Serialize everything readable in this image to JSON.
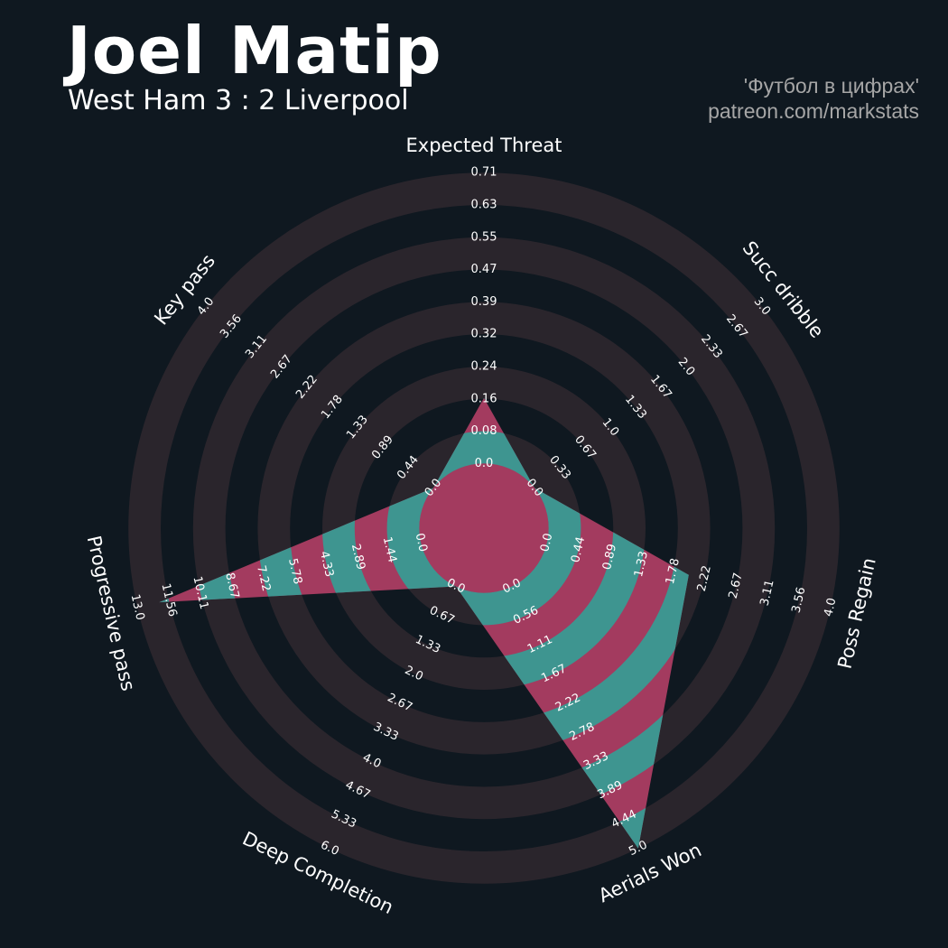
{
  "header": {
    "title": "Joel Matip",
    "subtitle": "West Ham 3 : 2 Liverpool",
    "credit_line1": "'Футбол в цифрах'",
    "credit_line2": "patreon.com/markstats"
  },
  "colors": {
    "background": "#0f1820",
    "ring": "#2a252c",
    "fill_teal": "#3e9590",
    "fill_pink": "#a33b5f",
    "text": "#ffffff"
  },
  "chart_data": {
    "type": "radar",
    "title": "Joel Matip",
    "subtitle": "West Ham 3 : 2 Liverpool",
    "grid": true,
    "axes": [
      {
        "label": "Expected Threat",
        "value": 0.16,
        "max": 0.71,
        "ticks": [
          "0.0",
          "0.08",
          "0.16",
          "0.24",
          "0.32",
          "0.39",
          "0.47",
          "0.55",
          "0.63",
          "0.71"
        ]
      },
      {
        "label": "Succ dribble",
        "value": 0.0,
        "max": 3.0,
        "ticks": [
          "0.0",
          "0.33",
          "0.67",
          "1.0",
          "1.33",
          "1.67",
          "2.0",
          "2.33",
          "2.67",
          "3.0"
        ]
      },
      {
        "label": "Poss Regain",
        "value": 2.0,
        "max": 4.0,
        "ticks": [
          "0.0",
          "0.44",
          "0.89",
          "1.33",
          "1.78",
          "2.22",
          "2.67",
          "3.11",
          "3.56",
          "4.0"
        ]
      },
      {
        "label": "Aerials Won",
        "value": 5.0,
        "max": 5.0,
        "ticks": [
          "0.0",
          "0.56",
          "1.11",
          "1.67",
          "2.22",
          "2.78",
          "3.33",
          "3.89",
          "4.44",
          "5.0"
        ]
      },
      {
        "label": "Deep Completion",
        "value": 0.0,
        "max": 6.0,
        "ticks": [
          "0.0",
          "0.67",
          "1.33",
          "2.0",
          "2.67",
          "3.33",
          "4.0",
          "4.67",
          "5.33",
          "6.0"
        ]
      },
      {
        "label": "Progressive pass",
        "value": 12.0,
        "max": 13.0,
        "ticks": [
          "0.0",
          "1.44",
          "2.89",
          "4.33",
          "5.78",
          "7.22",
          "8.67",
          "10.11",
          "11.56",
          "13.0"
        ]
      },
      {
        "label": "Key pass",
        "value": 0.0,
        "max": 4.0,
        "ticks": [
          "0.0",
          "0.44",
          "0.89",
          "1.33",
          "1.78",
          "2.22",
          "2.67",
          "3.11",
          "3.56",
          "4.0"
        ]
      }
    ]
  }
}
